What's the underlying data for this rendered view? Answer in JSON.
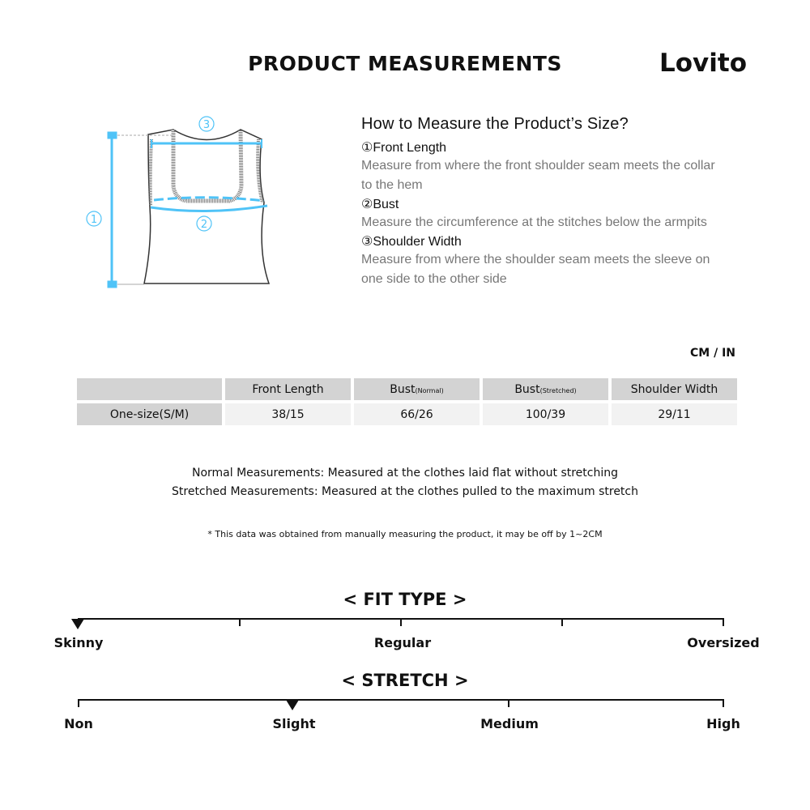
{
  "header": {
    "title": "PRODUCT MEASUREMENTS",
    "brand": "Lovito"
  },
  "diagram": {
    "labels": [
      "①",
      "②",
      "③"
    ],
    "accent": "#4fc3f7"
  },
  "howto": {
    "title": "How to Measure the Product’s Size?",
    "items": [
      {
        "heading": "①Front Length",
        "desc": "Measure from where the front shoulder seam meets the collar to the hem"
      },
      {
        "heading": "②Bust",
        "desc": "Measure the circumference at the stitches below the armpits"
      },
      {
        "heading": "③Shoulder Width",
        "desc": "Measure from where the shoulder seam meets the sleeve on one side to the other side"
      }
    ]
  },
  "table": {
    "unit": "CM / IN",
    "headers": [
      "",
      "Front Length",
      "Bust",
      "(Normal)",
      "Bust",
      "(Stretched)",
      "Shoulder Width"
    ],
    "row": {
      "size": "One-size(S/M)",
      "values": [
        "38/15",
        "66/26",
        "100/39",
        "29/11"
      ]
    }
  },
  "notes": {
    "normal": "Normal Measurements: Measured at the clothes laid flat without stretching",
    "stretched": "Stretched  Measurements: Measured at the clothes pulled to the maximum stretch",
    "disclaimer": "* This data was obtained from manually measuring the product, it may be off by 1~2CM"
  },
  "fit": {
    "title": "< FIT TYPE >",
    "labels": [
      "Skinny",
      "Regular",
      "Oversized"
    ],
    "selected": "Skinny",
    "level": 0
  },
  "stretch": {
    "title": "< STRETCH >",
    "labels": [
      "Non",
      "Slight",
      "Medium",
      "High"
    ],
    "selected": "Slight",
    "level": 1
  }
}
